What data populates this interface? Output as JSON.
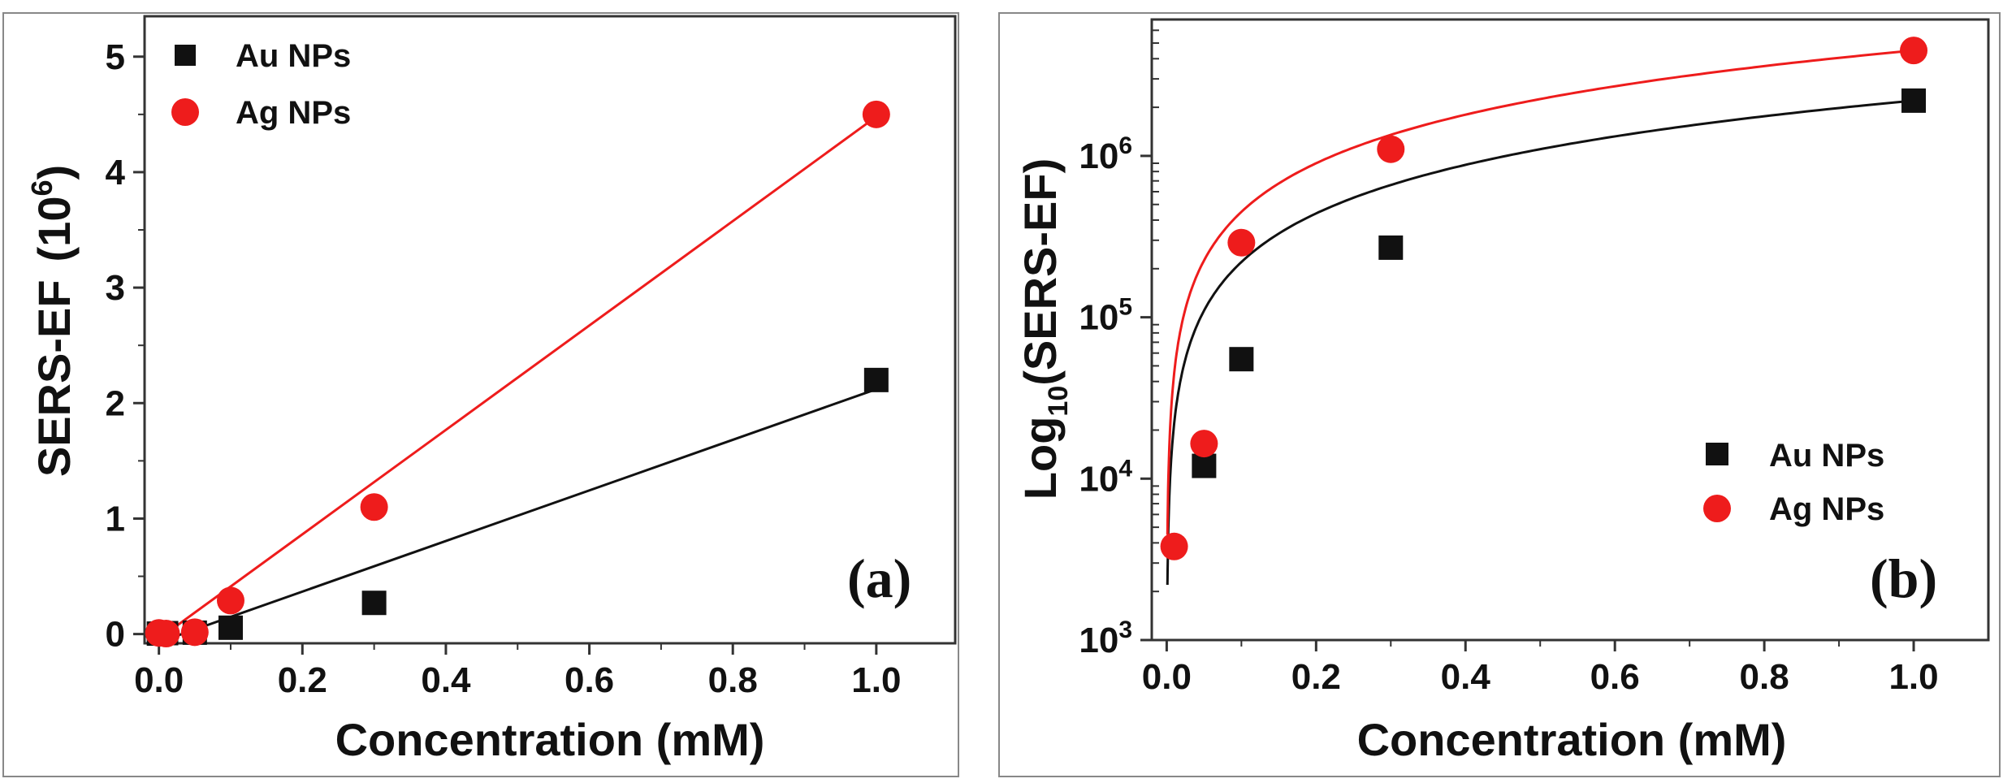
{
  "colors": {
    "au": "#111111",
    "ag": "#ee1c1c",
    "axis": "#333333"
  },
  "chart_data": [
    {
      "panel_label": "(a)",
      "type": "scatter",
      "xlabel": "Concentration (mM)",
      "ylabel_main": "SERS-EF",
      "ylabel_unit": "(10",
      "ylabel_exp": "6",
      "ylabel_close": ")",
      "xlim": [
        -0.02,
        1.11
      ],
      "ylim": [
        -0.08,
        5.35
      ],
      "xticks": [
        0.0,
        0.2,
        0.4,
        0.6,
        0.8,
        1.0
      ],
      "xtick_labels": [
        "0.0",
        "0.2",
        "0.4",
        "0.6",
        "0.8",
        "1.0"
      ],
      "yticks": [
        0,
        1,
        2,
        3,
        4,
        5
      ],
      "ytick_labels": [
        "0",
        "1",
        "2",
        "3",
        "4",
        "5"
      ],
      "legend_position": "top-left",
      "series": [
        {
          "name": "Au NPs",
          "marker": "square",
          "color": "#111111",
          "x": [
            0.0,
            0.01,
            0.05,
            0.1,
            0.3,
            1.0
          ],
          "y": [
            0.004,
            0.008,
            0.012,
            0.055,
            0.27,
            2.2
          ],
          "fit": {
            "x": [
              0.0,
              1.0
            ],
            "y": [
              -0.07,
              2.12
            ]
          }
        },
        {
          "name": "Ag NPs",
          "marker": "circle",
          "color": "#ee1c1c",
          "x": [
            0.0,
            0.01,
            0.05,
            0.1,
            0.3,
            1.0
          ],
          "y": [
            0.01,
            0.004,
            0.016,
            0.29,
            1.1,
            4.5
          ],
          "fit": {
            "x": [
              0.0,
              1.0
            ],
            "y": [
              -0.04,
              4.48
            ]
          }
        }
      ]
    },
    {
      "panel_label": "(b)",
      "type": "scatter",
      "yscale": "log",
      "xlabel": "Concentration (mM)",
      "ylabel_main": "Log",
      "ylabel_sub": "10",
      "ylabel_rest": "(SERS-EF)",
      "xlim": [
        -0.02,
        1.1
      ],
      "ylim": [
        1000,
        7000000
      ],
      "xticks": [
        0.0,
        0.2,
        0.4,
        0.6,
        0.8,
        1.0
      ],
      "xtick_labels": [
        "0.0",
        "0.2",
        "0.4",
        "0.6",
        "0.8",
        "1.0"
      ],
      "yticks": [
        1000,
        10000,
        100000,
        1000000
      ],
      "ytick_base": "10",
      "ytick_exps": [
        "3",
        "4",
        "5",
        "6"
      ],
      "legend_position": "bottom-right",
      "series": [
        {
          "name": "Au NPs",
          "marker": "square",
          "color": "#111111",
          "x": [
            0.05,
            0.1,
            0.3,
            1.0
          ],
          "y": [
            12000,
            55000,
            270000,
            2200000
          ],
          "fit": {
            "kind": "linear",
            "slope": 2200000,
            "x_from": 0.001,
            "x_to": 1.0
          }
        },
        {
          "name": "Ag NPs",
          "marker": "circle",
          "color": "#ee1c1c",
          "x": [
            0.01,
            0.05,
            0.1,
            0.3,
            1.0
          ],
          "y": [
            3800,
            16500,
            290000,
            1100000,
            4500000
          ],
          "fit": {
            "kind": "linear",
            "slope": 4500000,
            "x_from": 0.001,
            "x_to": 1.0
          }
        }
      ]
    }
  ]
}
